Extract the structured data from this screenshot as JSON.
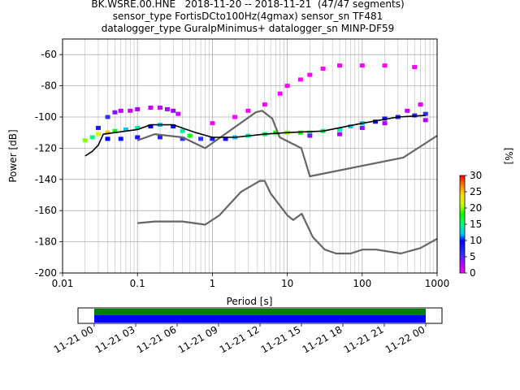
{
  "title_lines": [
    "BK.WSRE.00.HNE   2018-11-20 -- 2018-11-21  (47/47 segments)",
    "sensor_type FortisDCto100Hz(4gmax) sensor_sn TF481",
    "datalogger_type GuralpMinimus+ datalogger_sn MINP-DF59"
  ],
  "colorbar": {
    "label": "[%]",
    "ticks": [
      "0",
      "5",
      "10",
      "15",
      "20",
      "25",
      "30"
    ],
    "range": [
      0,
      30
    ]
  },
  "timeline": {
    "tick_labels": [
      "11-21 00",
      "11-21 03",
      "11-21 06",
      "11-21 09",
      "11-21 12",
      "11-21 15",
      "11-21 18",
      "11-21 21",
      "11-22 00"
    ],
    "bar_colors": {
      "upper": "#008000",
      "lower": "#0000ff"
    }
  },
  "chart_data": {
    "type": "heatmap",
    "title": "BK.WSRE.00.HNE   2018-11-20 -- 2018-11-21  (47/47 segments)",
    "xlabel": "Period [s]",
    "ylabel": "Power [dB]",
    "xscale": "log",
    "xlim": [
      0.01,
      1000
    ],
    "ylim": [
      -200,
      -50
    ],
    "x_tick_labels": [
      "0.01",
      "0.1",
      "1",
      "10",
      "100",
      "1000"
    ],
    "y_tick_labels": [
      "-200",
      "-180",
      "-160",
      "-140",
      "-120",
      "-100",
      "-80",
      "-60"
    ],
    "grid": true,
    "colormap": "pqlx",
    "series": [
      {
        "role": "new-high-noise-model",
        "color": "#666666",
        "points": [
          [
            0.1,
            -115
          ],
          [
            0.17,
            -111
          ],
          [
            0.4,
            -113
          ],
          [
            0.8,
            -120
          ],
          [
            3.8,
            -97
          ],
          [
            4.6,
            -96
          ],
          [
            6.3,
            -101
          ],
          [
            7.9,
            -113
          ],
          [
            15.4,
            -120
          ],
          [
            20,
            -138
          ],
          [
            354,
            -126
          ],
          [
            1000,
            -112
          ]
        ]
      },
      {
        "role": "new-low-noise-model",
        "color": "#666666",
        "points": [
          [
            0.1,
            -168
          ],
          [
            0.17,
            -167
          ],
          [
            0.4,
            -167
          ],
          [
            0.8,
            -169
          ],
          [
            1.24,
            -163
          ],
          [
            2.4,
            -148
          ],
          [
            4.3,
            -141
          ],
          [
            5,
            -141
          ],
          [
            6,
            -149
          ],
          [
            10,
            -163
          ],
          [
            12,
            -166
          ],
          [
            15.6,
            -162
          ],
          [
            21.9,
            -177
          ],
          [
            31.6,
            -185
          ],
          [
            45,
            -187.5
          ],
          [
            70,
            -187.5
          ],
          [
            101,
            -185
          ],
          [
            154,
            -185
          ],
          [
            328,
            -187.5
          ],
          [
            600,
            -184
          ],
          [
            1000,
            -178
          ]
        ]
      },
      {
        "role": "mean",
        "color": "#000000",
        "points": [
          [
            0.02,
            -125
          ],
          [
            0.025,
            -122
          ],
          [
            0.03,
            -118
          ],
          [
            0.035,
            -111
          ],
          [
            0.05,
            -110
          ],
          [
            0.1,
            -108
          ],
          [
            0.15,
            -105
          ],
          [
            0.3,
            -105
          ],
          [
            0.6,
            -110
          ],
          [
            1,
            -113
          ],
          [
            2,
            -113
          ],
          [
            5,
            -111
          ],
          [
            10,
            -110
          ],
          [
            30,
            -109
          ],
          [
            100,
            -104
          ],
          [
            300,
            -100
          ],
          [
            700,
            -99
          ]
        ]
      }
    ],
    "density": {
      "bins": [
        [
          0.02,
          -115,
          20
        ],
        [
          0.025,
          -113,
          15
        ],
        [
          0.03,
          -111,
          22
        ],
        [
          0.03,
          -107,
          8
        ],
        [
          0.04,
          -100,
          6
        ],
        [
          0.05,
          -97,
          4
        ],
        [
          0.06,
          -96,
          3
        ],
        [
          0.08,
          -96,
          2
        ],
        [
          0.1,
          -95,
          3
        ],
        [
          0.15,
          -94,
          2
        ],
        [
          0.2,
          -94,
          2
        ],
        [
          0.25,
          -95,
          3
        ],
        [
          0.3,
          -96,
          4
        ],
        [
          0.35,
          -98,
          2
        ],
        [
          0.04,
          -110,
          25
        ],
        [
          0.05,
          -109,
          18
        ],
        [
          0.07,
          -108,
          12
        ],
        [
          0.1,
          -107,
          14
        ],
        [
          0.15,
          -106,
          10
        ],
        [
          0.2,
          -105,
          12
        ],
        [
          0.3,
          -106,
          9
        ],
        [
          0.4,
          -109,
          14
        ],
        [
          0.5,
          -112,
          18
        ],
        [
          0.04,
          -114,
          10
        ],
        [
          0.06,
          -114,
          9
        ],
        [
          0.1,
          -113,
          8
        ],
        [
          0.2,
          -113,
          7
        ],
        [
          0.4,
          -114,
          6
        ],
        [
          0.7,
          -114,
          6
        ],
        [
          1,
          -114,
          8
        ],
        [
          1.5,
          -114,
          9
        ],
        [
          2,
          -113,
          12
        ],
        [
          3,
          -112,
          14
        ],
        [
          5,
          -111,
          16
        ],
        [
          7,
          -110,
          18
        ],
        [
          10,
          -110,
          20
        ],
        [
          15,
          -110,
          18
        ],
        [
          20,
          -110,
          15
        ],
        [
          30,
          -109,
          16
        ],
        [
          50,
          -108,
          14
        ],
        [
          70,
          -106,
          12
        ],
        [
          100,
          -104,
          12
        ],
        [
          150,
          -103,
          10
        ],
        [
          200,
          -101,
          9
        ],
        [
          300,
          -100,
          8
        ],
        [
          500,
          -99,
          7
        ],
        [
          700,
          -98,
          6
        ],
        [
          20,
          -112,
          4
        ],
        [
          50,
          -111,
          3
        ],
        [
          100,
          -107,
          4
        ],
        [
          200,
          -104,
          3
        ],
        [
          400,
          -96,
          2
        ],
        [
          600,
          -92,
          1
        ],
        [
          700,
          -102,
          3
        ],
        [
          1,
          -104,
          0
        ],
        [
          2,
          -100,
          0
        ],
        [
          3,
          -96,
          0
        ],
        [
          5,
          -92,
          0
        ],
        [
          8,
          -85,
          0
        ],
        [
          10,
          -80,
          0
        ],
        [
          15,
          -76,
          0
        ],
        [
          20,
          -73,
          0
        ],
        [
          30,
          -69,
          0
        ],
        [
          50,
          -67,
          0
        ],
        [
          100,
          -67,
          0
        ],
        [
          200,
          -67,
          0
        ],
        [
          500,
          -68,
          0
        ]
      ]
    }
  }
}
